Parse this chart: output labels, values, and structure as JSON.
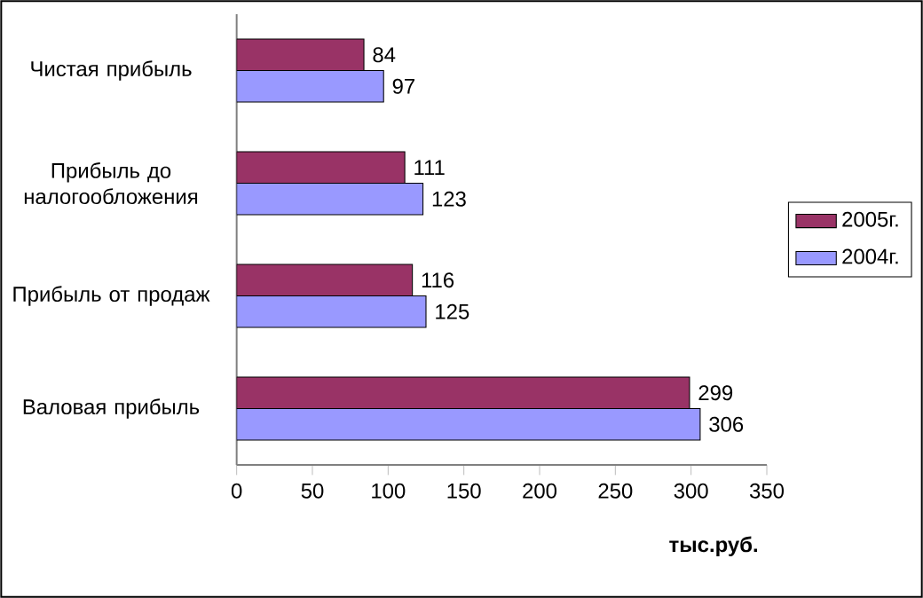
{
  "chart_data": {
    "type": "bar",
    "orientation": "horizontal",
    "xlabel": "тыс.руб.",
    "categories": [
      "Чистая прибыль",
      "Прибыль до налогообложения",
      "Прибыль от продаж",
      "Валовая прибыль"
    ],
    "series": [
      {
        "name": "2005г.",
        "color": "#993366",
        "values": [
          84,
          111,
          116,
          299
        ]
      },
      {
        "name": "2004г.",
        "color": "#9999ff",
        "values": [
          97,
          123,
          125,
          306
        ]
      }
    ],
    "xlim": [
      0,
      350
    ],
    "xticks": [
      0,
      50,
      100,
      150,
      200,
      250,
      300,
      350
    ],
    "data_labels": true,
    "legend": "right",
    "grid": false
  }
}
